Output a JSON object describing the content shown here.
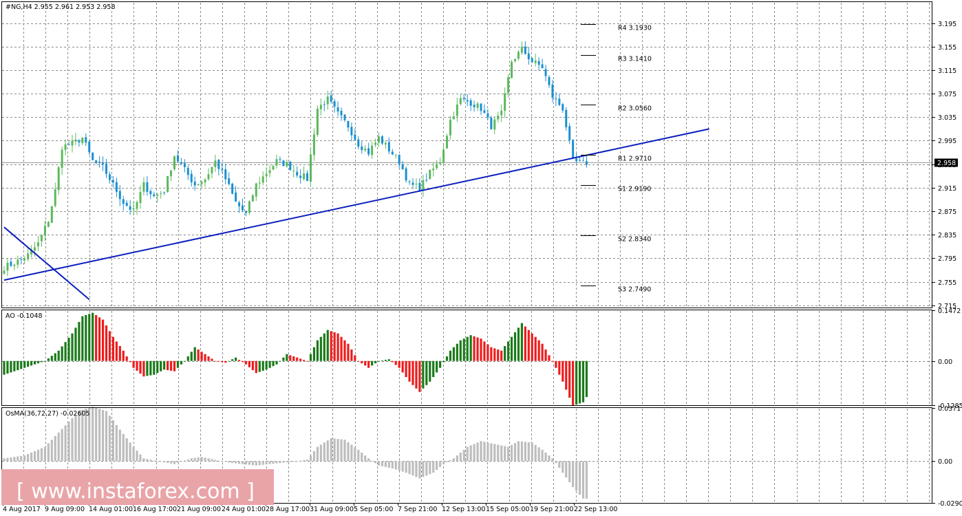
{
  "main_header": "#NG,H4  2.955 2.961 2.953 2.958",
  "ao_header": "AO -0.1048",
  "osma_header": "OsMA(36,72,27) -0.02605",
  "watermark": "[ www.instaforex.com ]",
  "colors": {
    "bull": "#5cb85c",
    "bear": "#1a8fd0",
    "trendline": "#0a1fbf",
    "ao_up": "#1a7a1a",
    "ao_down": "#ee1c1c",
    "osma": "#bdbdbd",
    "grid": "#8a8a8a",
    "watermark_bg": "#e9a4a8"
  },
  "chart_data": [
    {
      "type": "candlestick",
      "symbol": "#NG",
      "timeframe": "H4",
      "ylim": [
        2.715,
        3.195
      ],
      "y_ticks": [
        "3.195",
        "3.155",
        "3.115",
        "3.075",
        "3.035",
        "2.995",
        "2.955",
        "2.915",
        "2.875",
        "2.835",
        "2.795",
        "2.755",
        "2.715"
      ],
      "current_price": "2.958",
      "x_ticks": [
        "4 Aug 2017",
        "9 Aug 09:00",
        "14 Aug 01:00",
        "16 Aug 17:00",
        "21 Aug 09:00",
        "24 Aug 01:00",
        "28 Aug 17:00",
        "31 Aug 09:00",
        "5 Sep 05:00",
        "7 Sep 21:00",
        "12 Sep 13:00",
        "15 Sep 05:00",
        "19 Sep 21:00",
        "22 Sep 13:00"
      ],
      "close_anchors": [
        [
          0,
          2.78
        ],
        [
          4,
          2.79
        ],
        [
          7,
          2.8
        ],
        [
          10,
          2.82
        ],
        [
          13,
          2.86
        ],
        [
          15,
          2.91
        ],
        [
          17,
          2.985
        ],
        [
          20,
          2.99
        ],
        [
          23,
          3.0
        ],
        [
          26,
          2.96
        ],
        [
          29,
          2.95
        ],
        [
          32,
          2.92
        ],
        [
          35,
          2.89
        ],
        [
          38,
          2.875
        ],
        [
          41,
          2.92
        ],
        [
          44,
          2.9
        ],
        [
          47,
          2.91
        ],
        [
          50,
          2.97
        ],
        [
          53,
          2.945
        ],
        [
          56,
          2.92
        ],
        [
          59,
          2.93
        ],
        [
          62,
          2.96
        ],
        [
          65,
          2.93
        ],
        [
          68,
          2.89
        ],
        [
          71,
          2.87
        ],
        [
          74,
          2.92
        ],
        [
          77,
          2.94
        ],
        [
          80,
          2.96
        ],
        [
          83,
          2.955
        ],
        [
          86,
          2.94
        ],
        [
          89,
          2.93
        ],
        [
          92,
          3.05
        ],
        [
          95,
          3.065
        ],
        [
          98,
          3.04
        ],
        [
          101,
          3.02
        ],
        [
          104,
          2.99
        ],
        [
          107,
          2.975
        ],
        [
          110,
          3.0
        ],
        [
          113,
          2.98
        ],
        [
          116,
          2.96
        ],
        [
          119,
          2.92
        ],
        [
          122,
          2.915
        ],
        [
          125,
          2.94
        ],
        [
          128,
          2.96
        ],
        [
          131,
          3.03
        ],
        [
          134,
          3.065
        ],
        [
          137,
          3.06
        ],
        [
          140,
          3.05
        ],
        [
          143,
          3.02
        ],
        [
          146,
          3.04
        ],
        [
          149,
          3.13
        ],
        [
          152,
          3.15
        ],
        [
          155,
          3.13
        ],
        [
          158,
          3.12
        ],
        [
          161,
          3.07
        ],
        [
          164,
          3.05
        ],
        [
          167,
          2.96
        ],
        [
          170,
          2.955
        ],
        [
          171,
          2.958
        ]
      ],
      "pivot_levels": [
        {
          "name": "R4",
          "price": 3.193,
          "label": "R4  3.1930"
        },
        {
          "name": "R3",
          "price": 3.141,
          "label": "R3  3.1410"
        },
        {
          "name": "R2",
          "price": 3.056,
          "label": "R2  3.0560"
        },
        {
          "name": "R1",
          "price": 2.971,
          "label": "R1  2.9710"
        },
        {
          "name": "S1",
          "price": 2.919,
          "label": "S1  2.9190"
        },
        {
          "name": "S2",
          "price": 2.834,
          "label": "S2  2.8340"
        },
        {
          "name": "S3",
          "price": 2.749,
          "label": "S3  2.7490"
        }
      ],
      "trendlines": [
        {
          "from": [
            0,
            2.758
          ],
          "to": [
            207,
            3.015
          ]
        },
        {
          "from": [
            0,
            2.848
          ],
          "to": [
            25,
            2.725
          ]
        }
      ]
    },
    {
      "type": "histogram",
      "name": "AO",
      "value": -0.1048,
      "ylim": [
        -0.1285,
        0.1472
      ],
      "y_ticks": [
        "0.1472",
        "0.00",
        "-0.1285"
      ],
      "anchors": [
        [
          0,
          -0.04
        ],
        [
          6,
          -0.02
        ],
        [
          12,
          0.0
        ],
        [
          16,
          0.03
        ],
        [
          20,
          0.08
        ],
        [
          23,
          0.13
        ],
        [
          26,
          0.14
        ],
        [
          29,
          0.12
        ],
        [
          32,
          0.07
        ],
        [
          35,
          0.03
        ],
        [
          38,
          -0.02
        ],
        [
          41,
          -0.045
        ],
        [
          44,
          -0.04
        ],
        [
          47,
          -0.025
        ],
        [
          50,
          -0.03
        ],
        [
          53,
          0.0
        ],
        [
          56,
          0.04
        ],
        [
          59,
          0.02
        ],
        [
          62,
          0.0
        ],
        [
          65,
          -0.005
        ],
        [
          68,
          0.01
        ],
        [
          71,
          -0.01
        ],
        [
          74,
          -0.035
        ],
        [
          77,
          -0.025
        ],
        [
          80,
          -0.01
        ],
        [
          83,
          0.02
        ],
        [
          86,
          0.01
        ],
        [
          89,
          0.0
        ],
        [
          92,
          0.06
        ],
        [
          95,
          0.09
        ],
        [
          98,
          0.08
        ],
        [
          101,
          0.05
        ],
        [
          104,
          0.0
        ],
        [
          107,
          -0.02
        ],
        [
          110,
          0.0
        ],
        [
          113,
          0.005
        ],
        [
          116,
          -0.02
        ],
        [
          119,
          -0.06
        ],
        [
          122,
          -0.09
        ],
        [
          125,
          -0.06
        ],
        [
          128,
          -0.02
        ],
        [
          131,
          0.03
        ],
        [
          134,
          0.06
        ],
        [
          137,
          0.075
        ],
        [
          140,
          0.065
        ],
        [
          143,
          0.04
        ],
        [
          146,
          0.03
        ],
        [
          149,
          0.07
        ],
        [
          152,
          0.11
        ],
        [
          155,
          0.08
        ],
        [
          158,
          0.05
        ],
        [
          161,
          0.0
        ],
        [
          164,
          -0.06
        ],
        [
          167,
          -0.13
        ],
        [
          170,
          -0.12
        ],
        [
          171,
          -0.1048
        ]
      ]
    },
    {
      "type": "histogram",
      "name": "OsMA(36,72,27)",
      "value": -0.02605,
      "ylim": [
        -0.02906,
        0.0371
      ],
      "y_ticks": [
        "0.0371",
        "0.00",
        "-0.02906"
      ],
      "anchors": [
        [
          0,
          0.002
        ],
        [
          6,
          0.004
        ],
        [
          12,
          0.01
        ],
        [
          18,
          0.025
        ],
        [
          22,
          0.035
        ],
        [
          26,
          0.038
        ],
        [
          30,
          0.035
        ],
        [
          34,
          0.022
        ],
        [
          38,
          0.01
        ],
        [
          41,
          0.002
        ],
        [
          45,
          0.0
        ],
        [
          50,
          -0.002
        ],
        [
          55,
          0.002
        ],
        [
          58,
          0.003
        ],
        [
          62,
          0.001
        ],
        [
          66,
          -0.001
        ],
        [
          70,
          -0.002
        ],
        [
          74,
          -0.003
        ],
        [
          78,
          -0.002
        ],
        [
          82,
          -0.001
        ],
        [
          86,
          0.0
        ],
        [
          89,
          0.001
        ],
        [
          92,
          0.01
        ],
        [
          96,
          0.016
        ],
        [
          100,
          0.015
        ],
        [
          104,
          0.008
        ],
        [
          107,
          0.002
        ],
        [
          110,
          -0.003
        ],
        [
          114,
          -0.005
        ],
        [
          118,
          -0.008
        ],
        [
          122,
          -0.012
        ],
        [
          126,
          -0.008
        ],
        [
          129,
          -0.002
        ],
        [
          132,
          0.002
        ],
        [
          136,
          0.01
        ],
        [
          140,
          0.014
        ],
        [
          144,
          0.012
        ],
        [
          148,
          0.01
        ],
        [
          151,
          0.014
        ],
        [
          155,
          0.013
        ],
        [
          158,
          0.008
        ],
        [
          161,
          0.002
        ],
        [
          164,
          -0.008
        ],
        [
          167,
          -0.018
        ],
        [
          170,
          -0.026
        ],
        [
          171,
          -0.02605
        ]
      ]
    }
  ]
}
